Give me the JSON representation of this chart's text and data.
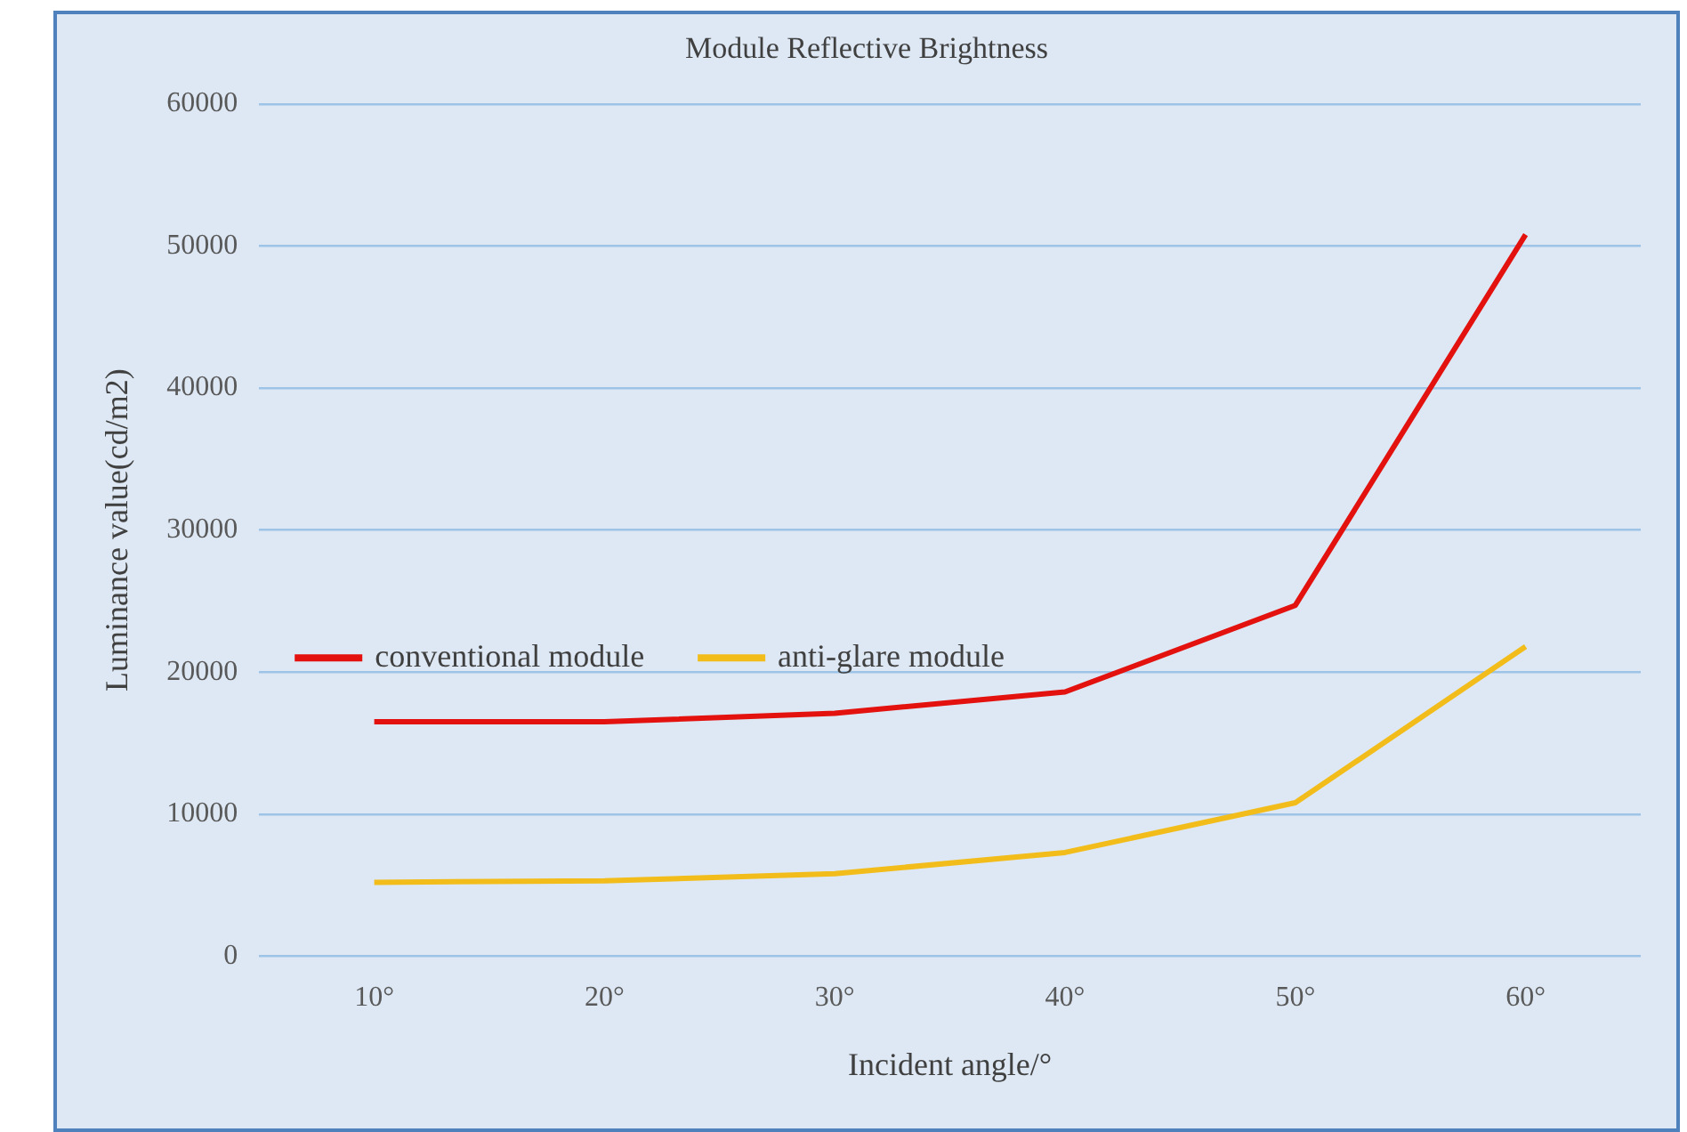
{
  "chart_data": {
    "type": "line",
    "title": "Module Reflective Brightness",
    "xlabel": "Incident angle/°",
    "ylabel": "Luminance value(cd/m2)",
    "categories": [
      "10°",
      "20°",
      "30°",
      "40°",
      "50°",
      "60°"
    ],
    "series": [
      {
        "name": "conventional module",
        "color": "#e3120f",
        "values": [
          16500,
          16500,
          17100,
          18600,
          24700,
          50800
        ]
      },
      {
        "name": "anti-glare module",
        "color": "#f2bd1a",
        "values": [
          5200,
          5300,
          5800,
          7300,
          10800,
          21800
        ]
      }
    ],
    "ylim": [
      0,
      60000
    ],
    "yticks": [
      0,
      10000,
      20000,
      30000,
      40000,
      50000,
      60000
    ],
    "grid": "y",
    "legend": "left",
    "marker": "none",
    "line_style": "solid"
  }
}
